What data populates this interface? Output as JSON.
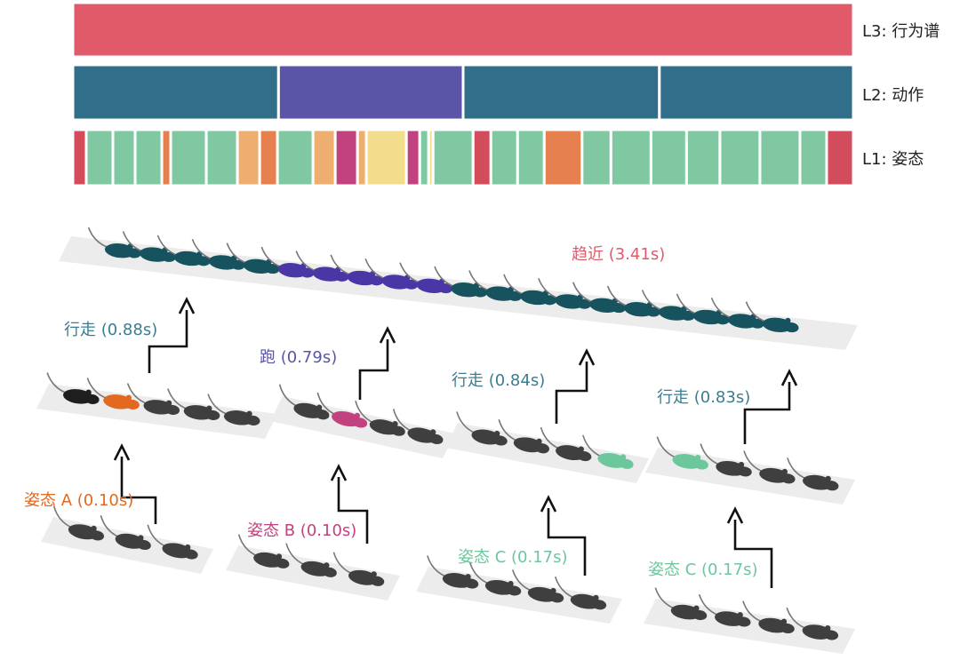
{
  "hierarchy": {
    "levels": [
      {
        "id": "L3",
        "label": "L3: 行为谱"
      },
      {
        "id": "L2",
        "label": "L2: 动作"
      },
      {
        "id": "L1",
        "label": "L1: 姿态"
      }
    ],
    "L3_segments": [
      {
        "weight": 1,
        "color": "#e05a6a"
      }
    ],
    "L2_segments": [
      {
        "weight": 0.88,
        "color": "#316e8a"
      },
      {
        "weight": 0.79,
        "color": "#5a55a6"
      },
      {
        "weight": 0.84,
        "color": "#316e8a"
      },
      {
        "weight": 0.83,
        "color": "#316e8a"
      }
    ],
    "L1_segments": [
      {
        "weight": 0.6,
        "color": "#d24c5b"
      },
      {
        "weight": 1.2,
        "color": "#7fc8a1"
      },
      {
        "weight": 1.0,
        "color": "#7fc8a1"
      },
      {
        "weight": 1.2,
        "color": "#7fc8a1"
      },
      {
        "weight": 0.4,
        "color": "#e6804f"
      },
      {
        "weight": 1.6,
        "color": "#7fc8a1"
      },
      {
        "weight": 1.4,
        "color": "#7fc8a1"
      },
      {
        "weight": 1.0,
        "color": "#eeae70"
      },
      {
        "weight": 0.8,
        "color": "#e6804f"
      },
      {
        "weight": 1.6,
        "color": "#7fc8a1"
      },
      {
        "weight": 1.0,
        "color": "#eeae70"
      },
      {
        "weight": 1.0,
        "color": "#c1427f"
      },
      {
        "weight": 0.4,
        "color": "#eeae70"
      },
      {
        "weight": 1.8,
        "color": "#f2dd8c"
      },
      {
        "weight": 0.6,
        "color": "#c1427f"
      },
      {
        "weight": 0.4,
        "color": "#7fc8a1"
      },
      {
        "weight": 0.2,
        "color": "#f2dd8c"
      },
      {
        "weight": 1.8,
        "color": "#7fc8a1"
      },
      {
        "weight": 0.8,
        "color": "#d24c5b"
      },
      {
        "weight": 1.2,
        "color": "#7fc8a1"
      },
      {
        "weight": 1.2,
        "color": "#7fc8a1"
      },
      {
        "weight": 1.7,
        "color": "#e6804f"
      },
      {
        "weight": 1.3,
        "color": "#7fc8a1"
      },
      {
        "weight": 1.8,
        "color": "#7fc8a1"
      },
      {
        "weight": 1.6,
        "color": "#7fc8a1"
      },
      {
        "weight": 1.5,
        "color": "#7fc8a1"
      },
      {
        "weight": 1.8,
        "color": "#7fc8a1"
      },
      {
        "weight": 1.8,
        "color": "#7fc8a1"
      },
      {
        "weight": 1.2,
        "color": "#7fc8a1"
      },
      {
        "weight": 1.2,
        "color": "#d24c5b"
      }
    ]
  },
  "labels": {
    "l3": "趋近 (3.41s)",
    "l2": [
      "行走 (0.88s)",
      "跑 (0.79s)",
      "行走 (0.84s)",
      "行走 (0.83s)"
    ],
    "l1": [
      "姿态 A (0.10s)",
      "姿态 B (0.10s)",
      "姿态 C (0.17s)",
      "姿态 C (0.17s)"
    ]
  },
  "colors": {
    "l3_text": "#e05a6a",
    "walk": "#17535e",
    "walk_text": "#3c7d90",
    "run": "#4b36a6",
    "run_text": "#5a55a6",
    "pose_a": "#e2691f",
    "pose_b": "#c1427f",
    "pose_c": "#6cc79c",
    "mouse_dark": "#3f3f3f",
    "mouse_black": "#1e1e1e",
    "platform": "#ececec"
  }
}
